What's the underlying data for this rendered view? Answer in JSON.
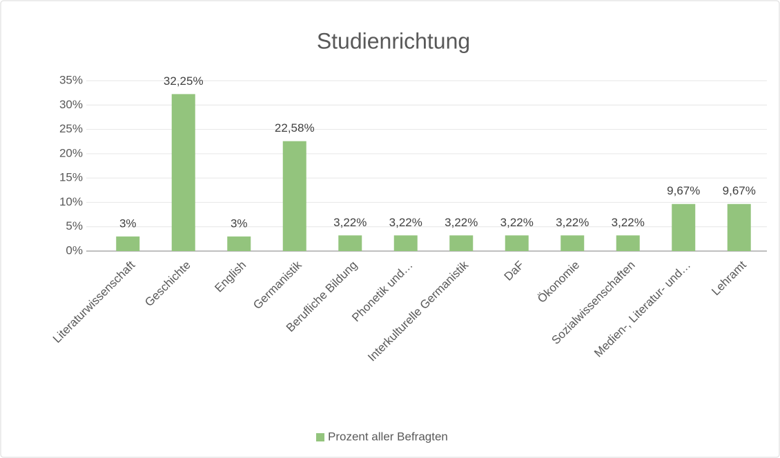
{
  "chart_data": {
    "type": "bar",
    "title": "Studienrichtung",
    "categories": [
      "Literaturwissenschaft",
      "Geschichte",
      "English",
      "Germanistik",
      "Berufliche Bildung",
      "Phonetik und…",
      "Interkulturelle Germanistik",
      "DaF",
      "Ökonomie",
      "Sozialwissenschaften",
      "Medien-, Literatur- und…",
      "Lehramt"
    ],
    "series": [
      {
        "name": "Prozent aller Befragten",
        "color": "#93c47d",
        "values": [
          3,
          32.25,
          3,
          22.58,
          3.22,
          3.22,
          3.22,
          3.22,
          3.22,
          3.22,
          9.67,
          9.67
        ],
        "value_labels": [
          "3%",
          "32,25%",
          "3%",
          "22,58%",
          "3,22%",
          "3,22%",
          "3,22%",
          "3,22%",
          "3,22%",
          "3,22%",
          "9,67%",
          "9,67%"
        ]
      }
    ],
    "ylim": [
      0,
      35
    ],
    "yticks": [
      {
        "value": 0,
        "label": "0%"
      },
      {
        "value": 5,
        "label": "5%"
      },
      {
        "value": 10,
        "label": "10%"
      },
      {
        "value": 15,
        "label": "15%"
      },
      {
        "value": 20,
        "label": "20%"
      },
      {
        "value": 25,
        "label": "25%"
      },
      {
        "value": 30,
        "label": "30%"
      },
      {
        "value": 35,
        "label": "35%"
      }
    ],
    "grid": true,
    "legend": "bottom"
  }
}
